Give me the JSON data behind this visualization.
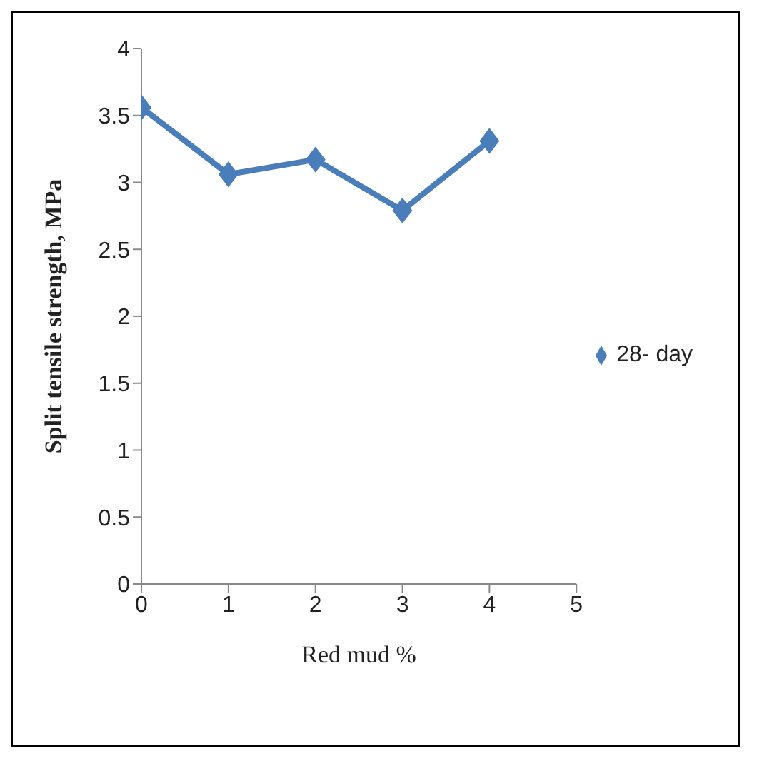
{
  "chart_data": {
    "type": "line",
    "xlabel": "Red mud %",
    "ylabel": "Split tensile strength, MPa",
    "x": [
      0,
      1,
      2,
      3,
      4
    ],
    "series": [
      {
        "name": "28- day",
        "color": "#4a7ebb",
        "values": [
          3.56,
          3.06,
          3.17,
          2.79,
          3.31
        ]
      }
    ],
    "xlim": [
      0,
      5
    ],
    "xticks": [
      0,
      1,
      2,
      3,
      4,
      5
    ],
    "ylim": [
      0,
      4
    ],
    "yticks": [
      0,
      0.5,
      1,
      1.5,
      2,
      2.5,
      3,
      3.5,
      4
    ],
    "grid": false,
    "legend": "right",
    "marker": "diamond",
    "line_style": "solid"
  }
}
